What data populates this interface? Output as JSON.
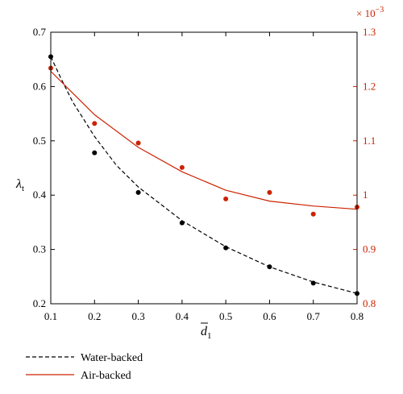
{
  "chart_data": {
    "type": "line",
    "xlabel_main": "d",
    "xlabel_sub": "1",
    "ylabel_main": "λ",
    "ylabel_sub": "t",
    "x_ticks": [
      "0.1",
      "0.2",
      "0.3",
      "0.4",
      "0.5",
      "0.6",
      "0.7",
      "0.8"
    ],
    "xlim": [
      0.1,
      0.8
    ],
    "y_left": {
      "lim": [
        0.2,
        0.7
      ],
      "ticks": [
        "0.2",
        "0.3",
        "0.4",
        "0.5",
        "0.6",
        "0.7"
      ],
      "color": "#000000"
    },
    "y_right": {
      "lim": [
        0.8,
        1.3
      ],
      "ticks": [
        "0.8",
        "0.9",
        "1",
        "1.1",
        "1.2",
        "1.3"
      ],
      "multiplier_base": "× 10",
      "multiplier_exp": "−3",
      "color": "#cc2200"
    },
    "legend": [
      {
        "label": "Water-backed",
        "style": "dashed",
        "color": "#000000"
      },
      {
        "label": "Air-backed",
        "style": "solid",
        "color": "#cc2200"
      }
    ],
    "series": [
      {
        "name": "Water-backed",
        "axis": "left",
        "color": "#000000",
        "points_x": [
          0.1,
          0.2,
          0.3,
          0.4,
          0.5,
          0.6,
          0.7,
          0.8
        ],
        "points_y": [
          0.655,
          0.478,
          0.405,
          0.349,
          0.303,
          0.268,
          0.238,
          0.219
        ],
        "fit_x": [
          0.1,
          0.125,
          0.15,
          0.2,
          0.25,
          0.3,
          0.4,
          0.5,
          0.6,
          0.7,
          0.8
        ],
        "fit_y": [
          0.655,
          0.612,
          0.572,
          0.508,
          0.455,
          0.415,
          0.353,
          0.305,
          0.268,
          0.24,
          0.219
        ]
      },
      {
        "name": "Air-backed",
        "axis": "right",
        "color": "#cc2200",
        "points_x": [
          0.1,
          0.2,
          0.3,
          0.4,
          0.5,
          0.6,
          0.7,
          0.8
        ],
        "points_y": [
          1.234,
          1.132,
          1.096,
          1.051,
          0.993,
          1.005,
          0.965,
          0.978
        ],
        "fit_x": [
          0.1,
          0.2,
          0.3,
          0.4,
          0.5,
          0.6,
          0.7,
          0.8
        ],
        "fit_y": [
          1.228,
          1.148,
          1.088,
          1.043,
          1.009,
          0.989,
          0.98,
          0.974
        ]
      }
    ]
  }
}
